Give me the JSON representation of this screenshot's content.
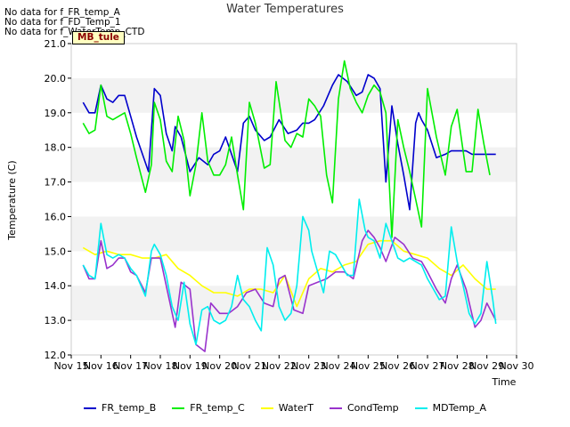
{
  "nodata_lines": [
    "No data for f_FR_temp_A",
    "No data for f_FD_Temp_1",
    "No data for f_WaterTemp_CTD"
  ],
  "badge": "MB_tule",
  "chart_data": {
    "type": "line",
    "title": "Water Temperatures",
    "xlabel": "Time",
    "ylabel": "Temperature (C)",
    "xlim": [
      15,
      30
    ],
    "ylim": [
      12.0,
      21.0
    ],
    "x_ticks": [
      15,
      16,
      17,
      18,
      19,
      20,
      21,
      22,
      23,
      24,
      25,
      26,
      27,
      28,
      29,
      30
    ],
    "x_tick_labels": [
      "Nov 15",
      "Nov 16",
      "Nov 17",
      "Nov 18",
      "Nov 19",
      "Nov 20",
      "Nov 21",
      "Nov 22",
      "Nov 23",
      "Nov 24",
      "Nov 25",
      "Nov 26",
      "Nov 27",
      "Nov 28",
      "Nov 29",
      "Nov 30"
    ],
    "y_ticks": [
      12.0,
      13.0,
      14.0,
      15.0,
      16.0,
      17.0,
      18.0,
      19.0,
      20.0,
      21.0
    ],
    "y_tick_labels": [
      "12.0",
      "13.0",
      "14.0",
      "15.0",
      "16.0",
      "17.0",
      "18.0",
      "19.0",
      "20.0",
      "21.0"
    ],
    "grid_bands": true,
    "legend_position": "bottom",
    "series": [
      {
        "name": "FR_temp_B",
        "color": "#0000cc",
        "x": [
          15.4,
          15.6,
          15.8,
          16.0,
          16.1,
          16.2,
          16.4,
          16.6,
          16.8,
          17.0,
          17.2,
          17.6,
          17.7,
          17.8,
          18.0,
          18.2,
          18.4,
          18.5,
          18.7,
          19.0,
          19.3,
          19.6,
          19.8,
          20.0,
          20.2,
          20.4,
          20.6,
          20.8,
          21.0,
          21.2,
          21.5,
          21.7,
          22.0,
          22.3,
          22.6,
          22.8,
          23.0,
          23.2,
          23.5,
          23.8,
          24.0,
          24.3,
          24.6,
          24.8,
          25.0,
          25.2,
          25.4,
          25.6,
          25.8,
          26.0,
          26.2,
          26.4,
          26.6,
          26.7,
          26.8,
          27.0,
          27.3,
          27.6,
          27.8,
          28.0,
          28.3,
          28.5,
          28.8,
          29.0,
          29.3
        ],
        "y": [
          19.3,
          19.0,
          19.0,
          19.8,
          19.6,
          19.4,
          19.3,
          19.5,
          19.5,
          18.9,
          18.3,
          17.3,
          18.5,
          19.7,
          19.5,
          18.4,
          17.9,
          18.6,
          18.3,
          17.3,
          17.7,
          17.5,
          17.8,
          17.9,
          18.3,
          17.8,
          17.3,
          18.7,
          18.9,
          18.5,
          18.2,
          18.3,
          18.8,
          18.4,
          18.5,
          18.7,
          18.7,
          18.8,
          19.2,
          19.8,
          20.1,
          19.9,
          19.5,
          19.6,
          20.1,
          20.0,
          19.7,
          17.0,
          19.2,
          18.1,
          17.2,
          16.2,
          18.7,
          19.0,
          18.8,
          18.5,
          17.7,
          17.8,
          17.9,
          17.9,
          17.9,
          17.8,
          17.8,
          17.8,
          17.8
        ]
      },
      {
        "name": "FR_temp_C",
        "color": "#00ee00",
        "x": [
          15.4,
          15.6,
          15.8,
          16.0,
          16.2,
          16.4,
          16.6,
          16.8,
          17.0,
          17.2,
          17.5,
          17.7,
          17.8,
          18.0,
          18.2,
          18.4,
          18.6,
          18.8,
          19.0,
          19.2,
          19.4,
          19.6,
          19.8,
          20.0,
          20.2,
          20.4,
          20.6,
          20.8,
          21.0,
          21.2,
          21.5,
          21.7,
          21.9,
          22.2,
          22.4,
          22.6,
          22.8,
          23.0,
          23.2,
          23.4,
          23.6,
          23.8,
          24.0,
          24.2,
          24.4,
          24.6,
          24.8,
          25.0,
          25.2,
          25.4,
          25.6,
          25.8,
          26.0,
          26.2,
          26.4,
          26.6,
          26.8,
          27.0,
          27.3,
          27.6,
          27.8,
          28.0,
          28.3,
          28.5,
          28.7,
          28.9,
          29.1
        ],
        "y": [
          18.7,
          18.4,
          18.5,
          19.8,
          18.9,
          18.8,
          18.9,
          19.0,
          18.4,
          17.7,
          16.7,
          17.5,
          19.3,
          18.8,
          17.6,
          17.3,
          18.9,
          18.2,
          16.6,
          17.5,
          19.0,
          17.6,
          17.2,
          17.2,
          17.5,
          18.3,
          17.2,
          16.2,
          19.3,
          18.7,
          17.4,
          17.5,
          19.9,
          18.2,
          18.0,
          18.4,
          18.3,
          19.4,
          19.2,
          18.9,
          17.2,
          16.4,
          19.4,
          20.5,
          19.7,
          19.3,
          19.0,
          19.5,
          19.8,
          19.6,
          19.0,
          15.4,
          18.8,
          18.0,
          17.3,
          16.5,
          15.7,
          19.7,
          18.3,
          17.2,
          18.6,
          19.1,
          17.3,
          17.3,
          19.1,
          18.1,
          17.2
        ]
      },
      {
        "name": "WaterT",
        "color": "#ffff00",
        "x": [
          15.4,
          15.8,
          16.2,
          16.6,
          17.0,
          17.4,
          17.8,
          18.2,
          18.6,
          19.0,
          19.4,
          19.8,
          20.2,
          20.6,
          21.0,
          21.4,
          21.8,
          22.2,
          22.6,
          23.0,
          23.4,
          23.8,
          24.2,
          24.6,
          25.0,
          25.4,
          25.8,
          26.2,
          26.6,
          27.0,
          27.4,
          27.8,
          28.2,
          28.6,
          29.0,
          29.3
        ],
        "y": [
          15.1,
          14.9,
          15.0,
          14.9,
          14.9,
          14.8,
          14.8,
          14.9,
          14.5,
          14.3,
          14.0,
          13.8,
          13.8,
          13.7,
          13.9,
          13.9,
          13.8,
          14.3,
          13.4,
          14.2,
          14.5,
          14.4,
          14.6,
          14.7,
          15.2,
          15.3,
          15.3,
          15.0,
          14.9,
          14.8,
          14.5,
          14.3,
          14.6,
          14.2,
          13.9,
          13.9
        ]
      },
      {
        "name": "CondTemp",
        "color": "#9933cc",
        "x": [
          15.4,
          15.6,
          15.8,
          16.0,
          16.2,
          16.4,
          16.6,
          16.8,
          17.0,
          17.2,
          17.5,
          17.7,
          18.0,
          18.2,
          18.5,
          18.7,
          19.0,
          19.2,
          19.5,
          19.7,
          20.0,
          20.3,
          20.6,
          20.9,
          21.2,
          21.5,
          21.8,
          22.0,
          22.2,
          22.5,
          22.8,
          23.0,
          23.3,
          23.6,
          23.9,
          24.2,
          24.5,
          24.8,
          25.0,
          25.2,
          25.4,
          25.6,
          25.9,
          26.2,
          26.5,
          26.8,
          27.0,
          27.3,
          27.6,
          27.8,
          28.0,
          28.3,
          28.6,
          28.8,
          29.0,
          29.3
        ],
        "y": [
          14.6,
          14.2,
          14.2,
          15.3,
          14.5,
          14.6,
          14.8,
          14.8,
          14.4,
          14.3,
          13.8,
          14.8,
          14.8,
          14.0,
          12.8,
          14.1,
          13.9,
          12.3,
          12.1,
          13.5,
          13.2,
          13.2,
          13.4,
          13.8,
          13.9,
          13.5,
          13.4,
          14.2,
          14.3,
          13.3,
          13.2,
          14.0,
          14.1,
          14.2,
          14.4,
          14.4,
          14.2,
          15.3,
          15.6,
          15.4,
          15.1,
          14.7,
          15.4,
          15.2,
          14.8,
          14.7,
          14.4,
          13.9,
          13.5,
          14.2,
          14.6,
          13.9,
          12.8,
          13.0,
          13.5,
          13.0
        ]
      },
      {
        "name": "MDTemp_A",
        "color": "#00eeee",
        "x": [
          15.4,
          15.6,
          15.8,
          16.0,
          16.2,
          16.4,
          16.6,
          16.8,
          17.0,
          17.2,
          17.5,
          17.7,
          17.8,
          18.0,
          18.2,
          18.4,
          18.6,
          18.8,
          19.0,
          19.2,
          19.4,
          19.6,
          19.8,
          20.0,
          20.2,
          20.4,
          20.6,
          20.8,
          21.0,
          21.2,
          21.4,
          21.6,
          21.8,
          22.0,
          22.2,
          22.4,
          22.6,
          22.8,
          23.0,
          23.1,
          23.3,
          23.5,
          23.7,
          23.9,
          24.1,
          24.3,
          24.5,
          24.7,
          24.9,
          25.0,
          25.2,
          25.4,
          25.6,
          25.8,
          26.0,
          26.2,
          26.4,
          26.6,
          26.8,
          27.0,
          27.2,
          27.4,
          27.6,
          27.8,
          28.0,
          28.2,
          28.4,
          28.6,
          28.8,
          29.0,
          29.2,
          29.3
        ],
        "y": [
          14.6,
          14.3,
          14.2,
          15.8,
          14.9,
          14.8,
          14.9,
          14.8,
          14.5,
          14.3,
          13.7,
          15.0,
          15.2,
          14.9,
          14.3,
          13.4,
          13.0,
          14.1,
          12.9,
          12.3,
          13.3,
          13.4,
          13.0,
          12.9,
          13.0,
          13.4,
          14.3,
          13.6,
          13.4,
          13.0,
          12.7,
          15.1,
          14.6,
          13.4,
          13.0,
          13.2,
          14.0,
          16.0,
          15.6,
          15.0,
          14.4,
          13.8,
          15.0,
          14.9,
          14.6,
          14.3,
          14.3,
          16.5,
          15.6,
          15.4,
          15.3,
          14.8,
          15.8,
          15.3,
          14.8,
          14.7,
          14.8,
          14.7,
          14.6,
          14.2,
          13.9,
          13.6,
          13.7,
          15.7,
          14.7,
          14.0,
          13.2,
          12.9,
          13.2,
          14.7,
          13.6,
          12.9
        ]
      }
    ]
  }
}
